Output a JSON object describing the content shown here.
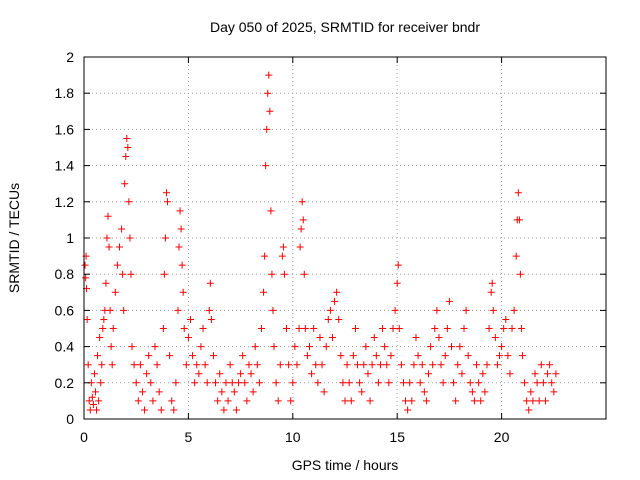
{
  "chart_data": {
    "type": "scatter",
    "title": "Day 050 of 2025, SRMTID for receiver bndr",
    "xlabel": "GPS time / hours",
    "ylabel": "SRMTID / TECUs",
    "xlim": [
      0,
      25
    ],
    "ylim": [
      0,
      2
    ],
    "xticks": [
      0,
      5,
      10,
      15,
      20
    ],
    "yticks": [
      0,
      0.2,
      0.4,
      0.6,
      0.8,
      1,
      1.2,
      1.4,
      1.6,
      1.8,
      2
    ],
    "xtick_labels": [
      "0",
      "5",
      "10",
      "15",
      "20"
    ],
    "ytick_labels": [
      "0",
      "0.2",
      "0.4",
      "0.6",
      "0.8",
      "1",
      "1.2",
      "1.4",
      "1.6",
      "1.8",
      "2"
    ],
    "grid": true,
    "marker": "plus",
    "color": "#ff0000",
    "x_range_observed": [
      0,
      22.6
    ],
    "series": [
      {
        "name": "SRMTID",
        "points": [
          [
            0.05,
            0.85
          ],
          [
            0.08,
            0.78
          ],
          [
            0.1,
            0.9
          ],
          [
            0.12,
            0.72
          ],
          [
            0.15,
            0.55
          ],
          [
            0.2,
            0.3
          ],
          [
            0.25,
            0.1
          ],
          [
            0.3,
            0.05
          ],
          [
            0.35,
            0.2
          ],
          [
            0.4,
            0.12
          ],
          [
            0.45,
            0.08
          ],
          [
            0.5,
            0.25
          ],
          [
            0.55,
            0.15
          ],
          [
            0.6,
            0.05
          ],
          [
            0.65,
            0.35
          ],
          [
            0.7,
            0.1
          ],
          [
            0.75,
            0.45
          ],
          [
            0.8,
            0.2
          ],
          [
            0.85,
            0.3
          ],
          [
            0.9,
            0.5
          ],
          [
            0.95,
            0.55
          ],
          [
            1.0,
            0.6
          ],
          [
            1.05,
            0.75
          ],
          [
            1.1,
            1.0
          ],
          [
            1.15,
            1.12
          ],
          [
            1.2,
            0.95
          ],
          [
            1.25,
            0.6
          ],
          [
            1.3,
            0.4
          ],
          [
            1.35,
            0.3
          ],
          [
            1.4,
            0.5
          ],
          [
            1.5,
            0.7
          ],
          [
            1.6,
            0.85
          ],
          [
            1.7,
            0.95
          ],
          [
            1.8,
            1.05
          ],
          [
            1.85,
            0.8
          ],
          [
            1.9,
            0.6
          ],
          [
            1.95,
            1.3
          ],
          [
            2.0,
            1.45
          ],
          [
            2.05,
            1.55
          ],
          [
            2.1,
            1.5
          ],
          [
            2.15,
            1.2
          ],
          [
            2.2,
            1.0
          ],
          [
            2.25,
            0.8
          ],
          [
            2.3,
            0.4
          ],
          [
            2.4,
            0.3
          ],
          [
            2.5,
            0.2
          ],
          [
            2.6,
            0.1
          ],
          [
            2.7,
            0.3
          ],
          [
            2.8,
            0.15
          ],
          [
            2.9,
            0.05
          ],
          [
            3.0,
            0.25
          ],
          [
            3.1,
            0.35
          ],
          [
            3.2,
            0.2
          ],
          [
            3.3,
            0.1
          ],
          [
            3.4,
            0.4
          ],
          [
            3.5,
            0.3
          ],
          [
            3.6,
            0.15
          ],
          [
            3.7,
            0.05
          ],
          [
            3.8,
            0.5
          ],
          [
            3.85,
            0.8
          ],
          [
            3.9,
            1.0
          ],
          [
            3.95,
            1.25
          ],
          [
            4.0,
            1.2
          ],
          [
            4.1,
            0.35
          ],
          [
            4.2,
            0.1
          ],
          [
            4.3,
            0.05
          ],
          [
            4.4,
            0.2
          ],
          [
            4.5,
            0.6
          ],
          [
            4.55,
            0.95
          ],
          [
            4.6,
            1.15
          ],
          [
            4.65,
            1.05
          ],
          [
            4.7,
            0.85
          ],
          [
            4.75,
            0.7
          ],
          [
            4.8,
            0.5
          ],
          [
            4.9,
            0.3
          ],
          [
            5.0,
            0.45
          ],
          [
            5.1,
            0.55
          ],
          [
            5.2,
            0.35
          ],
          [
            5.3,
            0.2
          ],
          [
            5.4,
            0.3
          ],
          [
            5.5,
            0.25
          ],
          [
            5.6,
            0.4
          ],
          [
            5.7,
            0.5
          ],
          [
            5.8,
            0.3
          ],
          [
            5.9,
            0.2
          ],
          [
            6.0,
            0.6
          ],
          [
            6.05,
            0.75
          ],
          [
            6.1,
            0.55
          ],
          [
            6.2,
            0.35
          ],
          [
            6.3,
            0.2
          ],
          [
            6.4,
            0.1
          ],
          [
            6.5,
            0.25
          ],
          [
            6.6,
            0.15
          ],
          [
            6.7,
            0.05
          ],
          [
            6.8,
            0.2
          ],
          [
            6.9,
            0.1
          ],
          [
            7.0,
            0.3
          ],
          [
            7.1,
            0.2
          ],
          [
            7.2,
            0.15
          ],
          [
            7.3,
            0.05
          ],
          [
            7.4,
            0.2
          ],
          [
            7.5,
            0.25
          ],
          [
            7.6,
            0.35
          ],
          [
            7.7,
            0.2
          ],
          [
            7.8,
            0.1
          ],
          [
            7.9,
            0.3
          ],
          [
            8.0,
            0.25
          ],
          [
            8.1,
            0.15
          ],
          [
            8.2,
            0.4
          ],
          [
            8.3,
            0.3
          ],
          [
            8.4,
            0.2
          ],
          [
            8.5,
            0.5
          ],
          [
            8.6,
            0.7
          ],
          [
            8.65,
            0.9
          ],
          [
            8.7,
            1.4
          ],
          [
            8.75,
            1.6
          ],
          [
            8.8,
            1.8
          ],
          [
            8.85,
            1.9
          ],
          [
            8.9,
            1.7
          ],
          [
            8.95,
            1.15
          ],
          [
            9.0,
            0.8
          ],
          [
            9.05,
            0.6
          ],
          [
            9.1,
            0.4
          ],
          [
            9.2,
            0.2
          ],
          [
            9.3,
            0.1
          ],
          [
            9.4,
            0.3
          ],
          [
            9.5,
            0.9
          ],
          [
            9.55,
            0.95
          ],
          [
            9.6,
            0.8
          ],
          [
            9.7,
            0.5
          ],
          [
            9.8,
            0.3
          ],
          [
            9.9,
            0.1
          ],
          [
            10.0,
            0.2
          ],
          [
            10.1,
            0.4
          ],
          [
            10.2,
            0.3
          ],
          [
            10.3,
            0.5
          ],
          [
            10.35,
            0.95
          ],
          [
            10.4,
            1.05
          ],
          [
            10.45,
            1.2
          ],
          [
            10.5,
            1.1
          ],
          [
            10.55,
            0.8
          ],
          [
            10.6,
            0.5
          ],
          [
            10.7,
            0.35
          ],
          [
            10.8,
            0.4
          ],
          [
            10.9,
            0.25
          ],
          [
            11.0,
            0.5
          ],
          [
            11.1,
            0.3
          ],
          [
            11.2,
            0.2
          ],
          [
            11.3,
            0.45
          ],
          [
            11.4,
            0.3
          ],
          [
            11.5,
            0.15
          ],
          [
            11.6,
            0.4
          ],
          [
            11.7,
            0.55
          ],
          [
            11.8,
            0.6
          ],
          [
            11.9,
            0.45
          ],
          [
            12.0,
            0.65
          ],
          [
            12.1,
            0.7
          ],
          [
            12.2,
            0.55
          ],
          [
            12.3,
            0.35
          ],
          [
            12.4,
            0.2
          ],
          [
            12.5,
            0.1
          ],
          [
            12.6,
            0.3
          ],
          [
            12.7,
            0.2
          ],
          [
            12.8,
            0.1
          ],
          [
            12.9,
            0.35
          ],
          [
            13.0,
            0.5
          ],
          [
            13.1,
            0.3
          ],
          [
            13.2,
            0.2
          ],
          [
            13.3,
            0.15
          ],
          [
            13.4,
            0.3
          ],
          [
            13.5,
            0.4
          ],
          [
            13.6,
            0.25
          ],
          [
            13.7,
            0.1
          ],
          [
            13.8,
            0.3
          ],
          [
            13.9,
            0.45
          ],
          [
            14.0,
            0.35
          ],
          [
            14.1,
            0.2
          ],
          [
            14.2,
            0.3
          ],
          [
            14.3,
            0.5
          ],
          [
            14.4,
            0.4
          ],
          [
            14.5,
            0.3
          ],
          [
            14.6,
            0.2
          ],
          [
            14.7,
            0.35
          ],
          [
            14.8,
            0.5
          ],
          [
            14.9,
            0.6
          ],
          [
            15.0,
            0.75
          ],
          [
            15.05,
            0.85
          ],
          [
            15.1,
            0.5
          ],
          [
            15.2,
            0.3
          ],
          [
            15.3,
            0.2
          ],
          [
            15.4,
            0.1
          ],
          [
            15.5,
            0.05
          ],
          [
            15.6,
            0.2
          ],
          [
            15.7,
            0.1
          ],
          [
            15.8,
            0.3
          ],
          [
            15.9,
            0.45
          ],
          [
            16.0,
            0.35
          ],
          [
            16.1,
            0.2
          ],
          [
            16.2,
            0.3
          ],
          [
            16.3,
            0.15
          ],
          [
            16.4,
            0.1
          ],
          [
            16.5,
            0.25
          ],
          [
            16.6,
            0.4
          ],
          [
            16.7,
            0.3
          ],
          [
            16.8,
            0.5
          ],
          [
            16.9,
            0.6
          ],
          [
            17.0,
            0.45
          ],
          [
            17.1,
            0.3
          ],
          [
            17.2,
            0.2
          ],
          [
            17.3,
            0.35
          ],
          [
            17.4,
            0.5
          ],
          [
            17.5,
            0.65
          ],
          [
            17.6,
            0.4
          ],
          [
            17.7,
            0.2
          ],
          [
            17.8,
            0.1
          ],
          [
            17.9,
            0.3
          ],
          [
            18.0,
            0.4
          ],
          [
            18.1,
            0.25
          ],
          [
            18.2,
            0.5
          ],
          [
            18.3,
            0.6
          ],
          [
            18.4,
            0.35
          ],
          [
            18.5,
            0.2
          ],
          [
            18.6,
            0.15
          ],
          [
            18.7,
            0.1
          ],
          [
            18.8,
            0.3
          ],
          [
            18.9,
            0.2
          ],
          [
            19.0,
            0.1
          ],
          [
            19.1,
            0.25
          ],
          [
            19.2,
            0.15
          ],
          [
            19.3,
            0.3
          ],
          [
            19.4,
            0.5
          ],
          [
            19.5,
            0.7
          ],
          [
            19.55,
            0.75
          ],
          [
            19.6,
            0.6
          ],
          [
            19.7,
            0.45
          ],
          [
            19.8,
            0.3
          ],
          [
            19.9,
            0.35
          ],
          [
            20.0,
            0.4
          ],
          [
            20.1,
            0.5
          ],
          [
            20.2,
            0.55
          ],
          [
            20.3,
            0.35
          ],
          [
            20.4,
            0.25
          ],
          [
            20.5,
            0.5
          ],
          [
            20.6,
            0.6
          ],
          [
            20.7,
            0.9
          ],
          [
            20.75,
            1.1
          ],
          [
            20.8,
            1.25
          ],
          [
            20.85,
            1.1
          ],
          [
            20.9,
            0.8
          ],
          [
            20.95,
            0.5
          ],
          [
            21.0,
            0.35
          ],
          [
            21.1,
            0.2
          ],
          [
            21.2,
            0.1
          ],
          [
            21.3,
            0.05
          ],
          [
            21.4,
            0.15
          ],
          [
            21.5,
            0.1
          ],
          [
            21.6,
            0.25
          ],
          [
            21.7,
            0.2
          ],
          [
            21.8,
            0.1
          ],
          [
            21.9,
            0.3
          ],
          [
            22.0,
            0.2
          ],
          [
            22.1,
            0.1
          ],
          [
            22.2,
            0.25
          ],
          [
            22.3,
            0.3
          ],
          [
            22.4,
            0.2
          ],
          [
            22.5,
            0.15
          ],
          [
            22.6,
            0.25
          ]
        ]
      }
    ]
  }
}
